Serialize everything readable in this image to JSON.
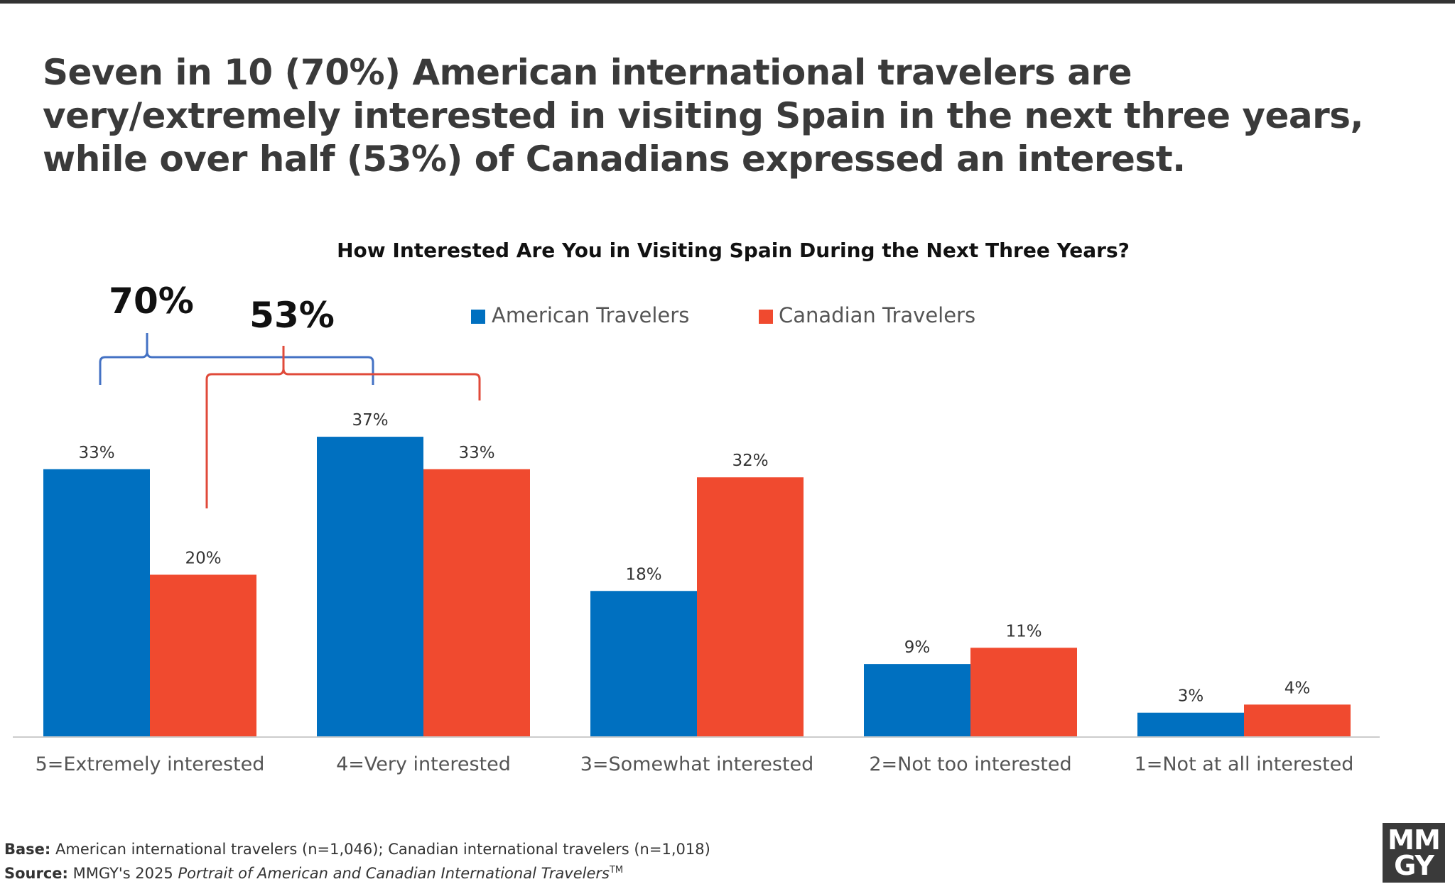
{
  "headline": "Seven in 10 (70%) American international travelers are very/extremely interested in visiting Spain in the next three years, while over half (53%) of Canadians expressed an interest.",
  "chart_data": {
    "type": "bar",
    "title": "How Interested Are You in Visiting Spain During the Next Three Years?",
    "categories": [
      "5=Extremely interested",
      "4=Very interested",
      "3=Somewhat interested",
      "2=Not too interested",
      "1=Not at all interested"
    ],
    "series": [
      {
        "name": "American Travelers",
        "color": "#0070c0",
        "values": [
          33,
          37,
          18,
          9,
          3
        ],
        "labels": [
          "33%",
          "37%",
          "18%",
          "9%",
          "3%"
        ]
      },
      {
        "name": "Canadian Travelers",
        "color": "#f04a2f",
        "values": [
          20,
          33,
          32,
          11,
          4
        ],
        "labels": [
          "20%",
          "33%",
          "32%",
          "11%",
          "4%"
        ]
      }
    ],
    "ylim": [
      0,
      40
    ],
    "legend": "top",
    "grid": false,
    "annotations": [
      {
        "text": "70%",
        "series": "American Travelers",
        "categories": [
          "5=Extremely interested",
          "4=Very interested"
        ],
        "color": "#4472c4"
      },
      {
        "text": "53%",
        "series": "Canadian Travelers",
        "categories": [
          "5=Extremely interested",
          "4=Very interested"
        ],
        "color": "#e04a3a"
      }
    ]
  },
  "footer": {
    "base_label": "Base:",
    "base_text": " American international travelers (n=1,046); Canadian international travelers (n=1,018)",
    "source_label": "Source:",
    "source_text": " MMGY's 2025 ",
    "source_italic": "Portrait of American and Canadian International Travelers",
    "source_tm": "TM"
  },
  "logo": {
    "line1": "MM",
    "line2": "GY"
  }
}
